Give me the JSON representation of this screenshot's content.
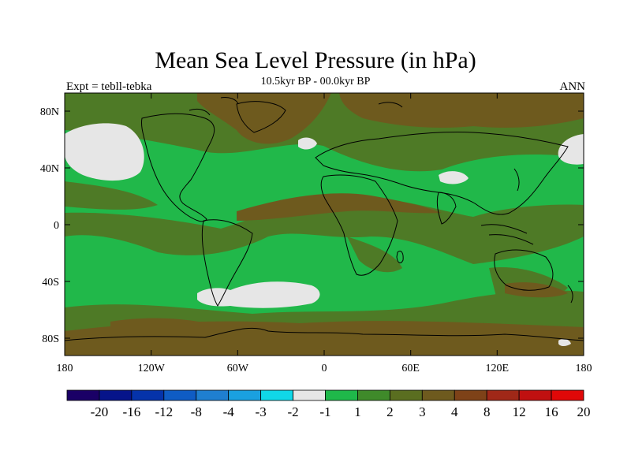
{
  "title": "Mean Sea Level Pressure (in hPa)",
  "subtitle": "10.5kyr BP - 00.0kyr BP",
  "left_label": "Expt = tebll-tebka",
  "right_label": "ANN",
  "x_ticks": [
    "180",
    "120W",
    "60W",
    "0",
    "60E",
    "120E",
    "180"
  ],
  "y_ticks": [
    "80N",
    "40N",
    "0",
    "40S",
    "80S"
  ],
  "colorbar": {
    "colors": [
      "#1a0066",
      "#06148a",
      "#0533aa",
      "#0f5cc4",
      "#1f7fd0",
      "#1aa0e0",
      "#10d8e8",
      "#e6e6e6",
      "#1fb84a",
      "#3f8a2a",
      "#5a6e20",
      "#6e5a1e",
      "#7e4218",
      "#a02818",
      "#c01010",
      "#e00808"
    ],
    "labels": [
      "-20",
      "-16",
      "-12",
      "-8",
      "-4",
      "-3",
      "-2",
      "-1",
      "1",
      "2",
      "3",
      "4",
      "8",
      "12",
      "16",
      "20"
    ]
  },
  "fill_colors": {
    "bright_green": "#21b84a",
    "olive": "#4e7a26",
    "brown": "#6e5a1e",
    "light_grey": "#e6e6e6"
  },
  "map_bounds": {
    "lon": [
      -180,
      180
    ],
    "lat": [
      -90,
      90
    ]
  },
  "icons": [
    "world-coastline"
  ]
}
